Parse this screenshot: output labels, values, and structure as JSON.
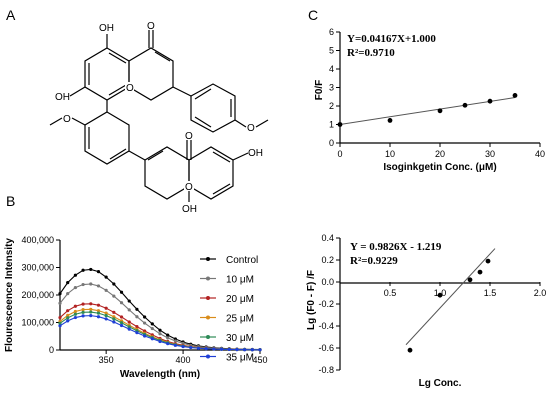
{
  "panels": {
    "a": "A",
    "b": "B",
    "c": "C"
  },
  "molecule": {
    "atoms": [
      {
        "k": "oh1",
        "text": "OH"
      },
      {
        "k": "o1",
        "text": "O"
      },
      {
        "k": "oh2",
        "text": "OH"
      },
      {
        "k": "o2",
        "text": "O"
      },
      {
        "k": "o3",
        "text": "O"
      },
      {
        "k": "o4",
        "text": "O"
      },
      {
        "k": "o5",
        "text": "O"
      },
      {
        "k": "o6",
        "text": "O"
      },
      {
        "k": "oh3",
        "text": "OH"
      },
      {
        "k": "oh4",
        "text": "OH"
      }
    ]
  },
  "chart_data": [
    {
      "id": "B",
      "type": "line",
      "xlabel": "Wavelength (nm)",
      "ylabel": "Flouresceence Intensity",
      "xlim": [
        320,
        450
      ],
      "ylim": [
        0,
        400000
      ],
      "xticks": [
        "350",
        "400",
        "450"
      ],
      "yticks": [
        "0",
        "100,000",
        "200,000",
        "300,000",
        "400,000"
      ],
      "x": [
        320,
        325,
        330,
        335,
        340,
        345,
        350,
        355,
        360,
        365,
        370,
        375,
        380,
        385,
        390,
        395,
        400,
        405,
        410,
        415,
        420,
        425,
        430,
        435,
        440,
        445,
        450
      ],
      "series": [
        {
          "name": "Control",
          "color": "#000000",
          "values": [
            205000,
            245000,
            272000,
            290000,
            293000,
            285000,
            265000,
            240000,
            210000,
            178000,
            148000,
            120000,
            95000,
            72000,
            54000,
            40000,
            29000,
            21000,
            15000,
            11000,
            8000,
            6000,
            4500,
            3500,
            2500,
            2000,
            1500
          ]
        },
        {
          "name": "10 μM",
          "color": "#777777",
          "values": [
            170000,
            205000,
            227000,
            238000,
            240000,
            233000,
            217000,
            196000,
            172000,
            146000,
            121000,
            98000,
            78000,
            59000,
            44000,
            33000,
            24000,
            17000,
            12500,
            9000,
            6500,
            5000,
            3800,
            2900,
            2100,
            1700,
            1300
          ]
        },
        {
          "name": "20 μM",
          "color": "#b22222",
          "values": [
            118000,
            143000,
            159000,
            167000,
            168000,
            163000,
            152000,
            137000,
            120000,
            102000,
            85000,
            69000,
            55000,
            42000,
            31000,
            23000,
            17000,
            12000,
            8800,
            6400,
            4700,
            3500,
            2700,
            2100,
            1600,
            1300,
            1000
          ]
        },
        {
          "name": "25 μM",
          "color": "#d98c1a",
          "values": [
            104000,
            126000,
            140000,
            147000,
            148000,
            143000,
            134000,
            121000,
            106000,
            90000,
            75000,
            61000,
            48000,
            37000,
            28000,
            20000,
            15000,
            11000,
            7800,
            5700,
            4200,
            3100,
            2400,
            1900,
            1400,
            1100,
            900
          ]
        },
        {
          "name": "30 μM",
          "color": "#2e8b57",
          "values": [
            97000,
            117000,
            130000,
            137000,
            138000,
            134000,
            125000,
            113000,
            99000,
            84000,
            70000,
            57000,
            45000,
            35000,
            26000,
            19000,
            14000,
            10000,
            7300,
            5300,
            3900,
            2900,
            2200,
            1700,
            1300,
            1000,
            800
          ]
        },
        {
          "name": "35 μM",
          "color": "#1f3fd6",
          "values": [
            88000,
            106000,
            118000,
            124000,
            125000,
            121000,
            113000,
            102000,
            89000,
            76000,
            63000,
            51000,
            41000,
            31000,
            23000,
            17000,
            12500,
            9000,
            6500,
            4700,
            3500,
            2600,
            2000,
            1500,
            1100,
            900,
            700
          ]
        }
      ],
      "legend": "right"
    },
    {
      "id": "C1",
      "type": "scatter",
      "xlabel": "Isoginkgetin Conc. (μM)",
      "ylabel": "F0/F",
      "xlim": [
        0,
        40
      ],
      "ylim": [
        0,
        6
      ],
      "xticks": [
        "0",
        "10",
        "20",
        "30",
        "40"
      ],
      "yticks": [
        "0",
        "1",
        "2",
        "3",
        "4",
        "5",
        "6"
      ],
      "points": [
        [
          0,
          1.0
        ],
        [
          10,
          1.22
        ],
        [
          20,
          1.74
        ],
        [
          25,
          2.04
        ],
        [
          30,
          2.26
        ],
        [
          35,
          2.57
        ]
      ],
      "fit": {
        "slope": 0.04167,
        "intercept": 1.0
      },
      "equation": "Y=0.04167X+1.000",
      "r2": "R²=0.9710"
    },
    {
      "id": "C2",
      "type": "scatter",
      "xlabel": "Lg Conc.",
      "ylabel": "Lg (F0 - F) /F",
      "xlim": [
        0,
        2.0
      ],
      "ylim": [
        -0.8,
        0.4
      ],
      "xticks": [
        "0.5",
        "1.0",
        "1.5",
        "2.0"
      ],
      "yticks": [
        "-0.8",
        "-0.6",
        "-0.4",
        "-0.2",
        "0.0",
        "0.2",
        "0.4"
      ],
      "points": [
        [
          0.7,
          -0.62
        ],
        [
          1.0,
          -0.12
        ],
        [
          1.3,
          0.02
        ],
        [
          1.4,
          0.09
        ],
        [
          1.48,
          0.19
        ]
      ],
      "fit": {
        "slope": 0.9826,
        "intercept": -1.219
      },
      "equation": "Y = 0.9826X - 1.219",
      "r2": "R²=0.9229"
    }
  ]
}
